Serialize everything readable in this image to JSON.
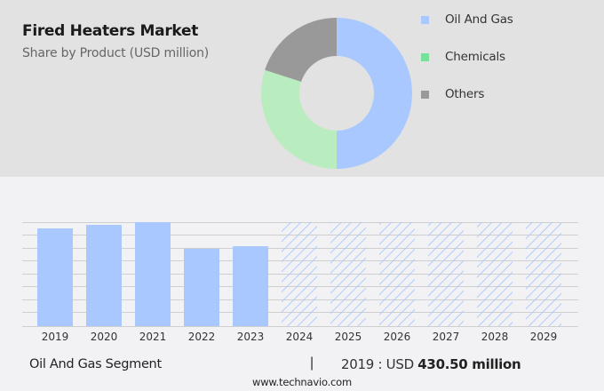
{
  "header": {
    "title": "Fired Heaters Market",
    "subtitle": "Share by Product (USD million)"
  },
  "legend": {
    "items": [
      {
        "label": "Oil And Gas",
        "color": "#a8c8ff"
      },
      {
        "label": "Chemicals",
        "color": "#77e09a"
      },
      {
        "label": "Others",
        "color": "#999999"
      }
    ]
  },
  "footer": {
    "segment_label": "Oil And Gas Segment",
    "separator": "|",
    "year_prefix": "2019 : USD ",
    "value_text": "430.50 million",
    "source_url": "www.technavio.com"
  },
  "colors": {
    "top_band": "#e2e2e2",
    "background": "#f2f2f4",
    "bar": "#a8c8ff",
    "hatch": "#a8c8ff",
    "gridline": "#cfcfcf",
    "donut_oil_gas": "#a8c8ff",
    "donut_chemicals": "#b9edbf",
    "donut_others": "#999999"
  },
  "chart_data": [
    {
      "type": "pie",
      "title": "Fired Heaters Market",
      "subtitle": "Share by Product (USD million)",
      "donut": true,
      "categories": [
        "Oil And Gas",
        "Chemicals",
        "Others"
      ],
      "values": [
        50,
        30,
        20
      ],
      "value_unit": "% share (estimated from arc angles)",
      "legend_position": "right"
    },
    {
      "type": "bar",
      "title": "Oil And Gas Segment",
      "categories": [
        "2019",
        "2020",
        "2021",
        "2022",
        "2023",
        "2024",
        "2025",
        "2026",
        "2027",
        "2028",
        "2029"
      ],
      "series": [
        {
          "name": "Oil And Gas (historic)",
          "values": [
            430.5,
            446,
            458,
            341,
            352,
            null,
            null,
            null,
            null,
            null,
            null
          ]
        },
        {
          "name": "Oil And Gas (forecast, hatched, values hidden)",
          "values": [
            null,
            null,
            null,
            null,
            null,
            458,
            458,
            458,
            458,
            458,
            458
          ]
        }
      ],
      "annotation": "2019 : USD 430.50 million",
      "xlabel": "",
      "ylabel": "",
      "y_tick_labels_shown": false,
      "grid": true,
      "ylim": [
        0,
        458
      ]
    }
  ]
}
